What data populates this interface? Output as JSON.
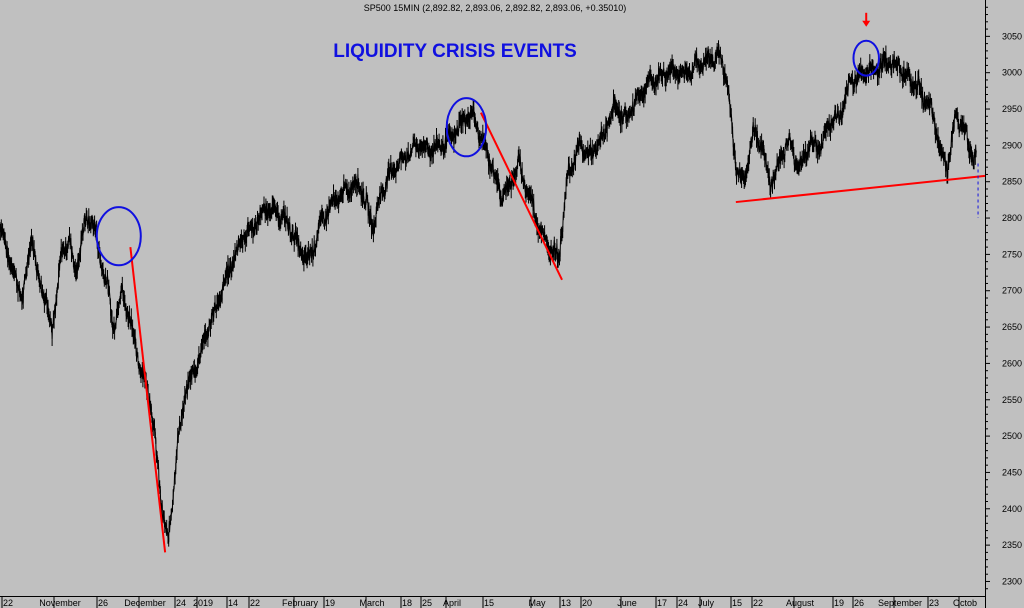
{
  "chart_data": {
    "type": "line",
    "header": "SP500 15MIN (2,892.82, 2,893.06, 2,892.82, 2,893.06, +0.35010)",
    "title": "LIQUIDITY CRISIS EVENTS",
    "ylim": [
      2280,
      3100
    ],
    "y_ticks": [
      2300,
      2350,
      2400,
      2450,
      2500,
      2550,
      2600,
      2650,
      2700,
      2750,
      2800,
      2850,
      2900,
      2950,
      3000,
      3050
    ],
    "x_ticks": [
      "22",
      "November",
      "26",
      "December",
      "24",
      "2019",
      "14",
      "22",
      "February",
      "19",
      "March",
      "18",
      "25",
      "April",
      "15",
      "May",
      "13",
      "20",
      "June",
      "17",
      "24",
      "July",
      "15",
      "22",
      "August",
      "19",
      "26",
      "September",
      "23",
      "Octob"
    ],
    "price_anchors": [
      [
        0.0,
        2790
      ],
      [
        2.5,
        2720
      ],
      [
        4.0,
        2690
      ],
      [
        5.5,
        2780
      ],
      [
        6.5,
        2720
      ],
      [
        8.0,
        2690
      ],
      [
        9.0,
        2640
      ],
      [
        10.5,
        2745
      ],
      [
        12.0,
        2775
      ],
      [
        13.0,
        2720
      ],
      [
        14.5,
        2790
      ],
      [
        16.0,
        2800
      ],
      [
        17.0,
        2755
      ],
      [
        18.5,
        2710
      ],
      [
        19.5,
        2650
      ],
      [
        21.0,
        2700
      ],
      [
        22.5,
        2660
      ],
      [
        24.0,
        2600
      ],
      [
        26.0,
        2550
      ],
      [
        28.0,
        2400
      ],
      [
        29.0,
        2350
      ],
      [
        30.5,
        2480
      ],
      [
        32.0,
        2560
      ],
      [
        34.0,
        2600
      ],
      [
        36.0,
        2650
      ],
      [
        38.0,
        2690
      ],
      [
        40.0,
        2740
      ],
      [
        42.0,
        2775
      ],
      [
        44.0,
        2790
      ],
      [
        46.0,
        2815
      ],
      [
        48.0,
        2805
      ],
      [
        50.0,
        2790
      ],
      [
        51.5,
        2760
      ],
      [
        53.0,
        2740
      ],
      [
        54.5,
        2770
      ],
      [
        56.0,
        2805
      ],
      [
        58.0,
        2825
      ],
      [
        60.0,
        2840
      ],
      [
        62.0,
        2850
      ],
      [
        63.5,
        2810
      ],
      [
        64.5,
        2790
      ],
      [
        66.0,
        2840
      ],
      [
        68.0,
        2870
      ],
      [
        70.0,
        2885
      ],
      [
        72.0,
        2900
      ],
      [
        74.0,
        2895
      ],
      [
        76.0,
        2900
      ],
      [
        78.0,
        2910
      ],
      [
        80.0,
        2935
      ],
      [
        81.5,
        2945
      ],
      [
        83.0,
        2910
      ],
      [
        85.0,
        2870
      ],
      [
        86.5,
        2830
      ],
      [
        88.0,
        2845
      ],
      [
        89.5,
        2875
      ],
      [
        91.0,
        2840
      ],
      [
        93.0,
        2790
      ],
      [
        94.5,
        2760
      ],
      [
        96.5,
        2750
      ],
      [
        98.0,
        2860
      ],
      [
        100.0,
        2900
      ],
      [
        102.0,
        2885
      ],
      [
        104.0,
        2910
      ],
      [
        106.0,
        2955
      ],
      [
        108.0,
        2935
      ],
      [
        110.0,
        2965
      ],
      [
        112.0,
        2985
      ],
      [
        114.0,
        2995
      ],
      [
        116.0,
        3005
      ],
      [
        118.0,
        2995
      ],
      [
        120.0,
        3010
      ],
      [
        122.0,
        3015
      ],
      [
        124.0,
        3025
      ],
      [
        125.5,
        2990
      ],
      [
        127.0,
        2870
      ],
      [
        128.5,
        2850
      ],
      [
        130.0,
        2920
      ],
      [
        131.5,
        2900
      ],
      [
        133.0,
        2845
      ],
      [
        134.5,
        2880
      ],
      [
        136.0,
        2905
      ],
      [
        138.0,
        2870
      ],
      [
        140.0,
        2905
      ],
      [
        141.5,
        2895
      ],
      [
        143.0,
        2930
      ],
      [
        145.0,
        2940
      ],
      [
        147.0,
        2990
      ],
      [
        149.0,
        3000
      ],
      [
        151.0,
        3005
      ],
      [
        153.0,
        3015
      ],
      [
        155.0,
        3010
      ],
      [
        157.0,
        2990
      ],
      [
        159.0,
        2975
      ],
      [
        161.0,
        2940
      ],
      [
        162.5,
        2890
      ],
      [
        163.5,
        2870
      ],
      [
        165.0,
        2940
      ],
      [
        166.5,
        2920
      ],
      [
        168.0,
        2880
      ],
      [
        168.5,
        2893
      ]
    ],
    "trend_lines": [
      {
        "color": "#ff0000",
        "from": [
          22.5,
          2760
        ],
        "to": [
          28.5,
          2340
        ]
      },
      {
        "color": "#ff0000",
        "from": [
          83.0,
          2945
        ],
        "to": [
          97.0,
          2715
        ]
      },
      {
        "color": "#ff0000",
        "from": [
          127.0,
          2822
        ],
        "to": [
          170.0,
          2858
        ]
      }
    ],
    "circles": [
      {
        "color": "#1010e0",
        "center": [
          20.5,
          2775
        ],
        "rx": 3.8,
        "ry": 40
      },
      {
        "color": "#1010e0",
        "center": [
          80.5,
          2925
        ],
        "rx": 3.4,
        "ry": 40
      },
      {
        "color": "#1010e0",
        "center": [
          149.5,
          3020
        ],
        "rx": 2.2,
        "ry": 24
      }
    ],
    "arrow": {
      "color": "#ff0000",
      "at": [
        149.5,
        3070
      ]
    },
    "dashed_marker": {
      "color": "#1010e0",
      "x": 168.8,
      "from": 2800,
      "to": 2875
    }
  }
}
